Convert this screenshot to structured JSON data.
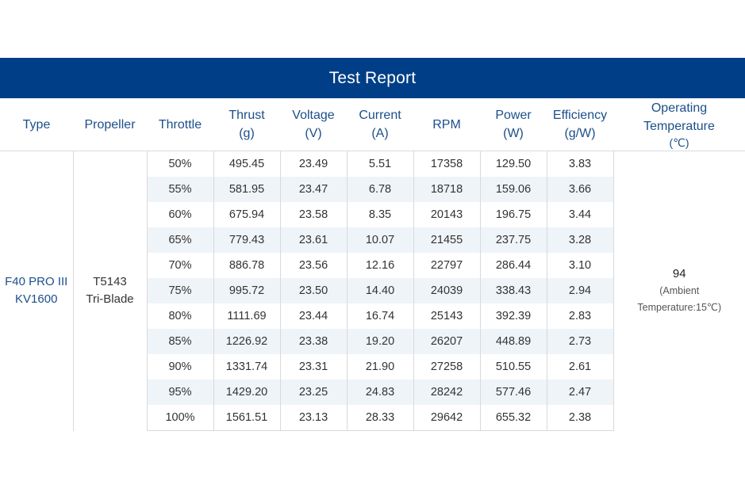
{
  "title": "Test Report",
  "headers": {
    "type": "Type",
    "propeller": "Propeller",
    "throttle": "Throttle",
    "thrust": [
      "Thrust",
      "(g)"
    ],
    "voltage": [
      "Voltage",
      "(V)"
    ],
    "current": [
      "Current",
      "(A)"
    ],
    "rpm": "RPM",
    "power": [
      "Power",
      "(W)"
    ],
    "efficiency": [
      "Efficiency",
      "(g/W)"
    ],
    "temperature": [
      "Operating",
      "Temperature",
      "(℃)"
    ]
  },
  "motor": {
    "line1": "F40 PRO III",
    "line2": "KV1600"
  },
  "propeller": {
    "line1": "T5143",
    "line2": "Tri-Blade"
  },
  "temperature": {
    "value": "94",
    "note1": "(Ambient",
    "note2": "Temperature:15℃)"
  },
  "rows": [
    [
      "50%",
      "495.45",
      "23.49",
      "5.51",
      "17358",
      "129.50",
      "3.83"
    ],
    [
      "55%",
      "581.95",
      "23.47",
      "6.78",
      "18718",
      "159.06",
      "3.66"
    ],
    [
      "60%",
      "675.94",
      "23.58",
      "8.35",
      "20143",
      "196.75",
      "3.44"
    ],
    [
      "65%",
      "779.43",
      "23.61",
      "10.07",
      "21455",
      "237.75",
      "3.28"
    ],
    [
      "70%",
      "886.78",
      "23.56",
      "12.16",
      "22797",
      "286.44",
      "3.10"
    ],
    [
      "75%",
      "995.72",
      "23.50",
      "14.40",
      "24039",
      "338.43",
      "2.94"
    ],
    [
      "80%",
      "1111.69",
      "23.44",
      "16.74",
      "25143",
      "392.39",
      "2.83"
    ],
    [
      "85%",
      "1226.92",
      "23.38",
      "19.20",
      "26207",
      "448.89",
      "2.73"
    ],
    [
      "90%",
      "1331.74",
      "23.31",
      "21.90",
      "27258",
      "510.55",
      "2.61"
    ],
    [
      "95%",
      "1429.20",
      "23.25",
      "24.83",
      "28242",
      "577.46",
      "2.47"
    ],
    [
      "100%",
      "1561.51",
      "23.13",
      "28.33",
      "29642",
      "655.32",
      "2.38"
    ]
  ]
}
